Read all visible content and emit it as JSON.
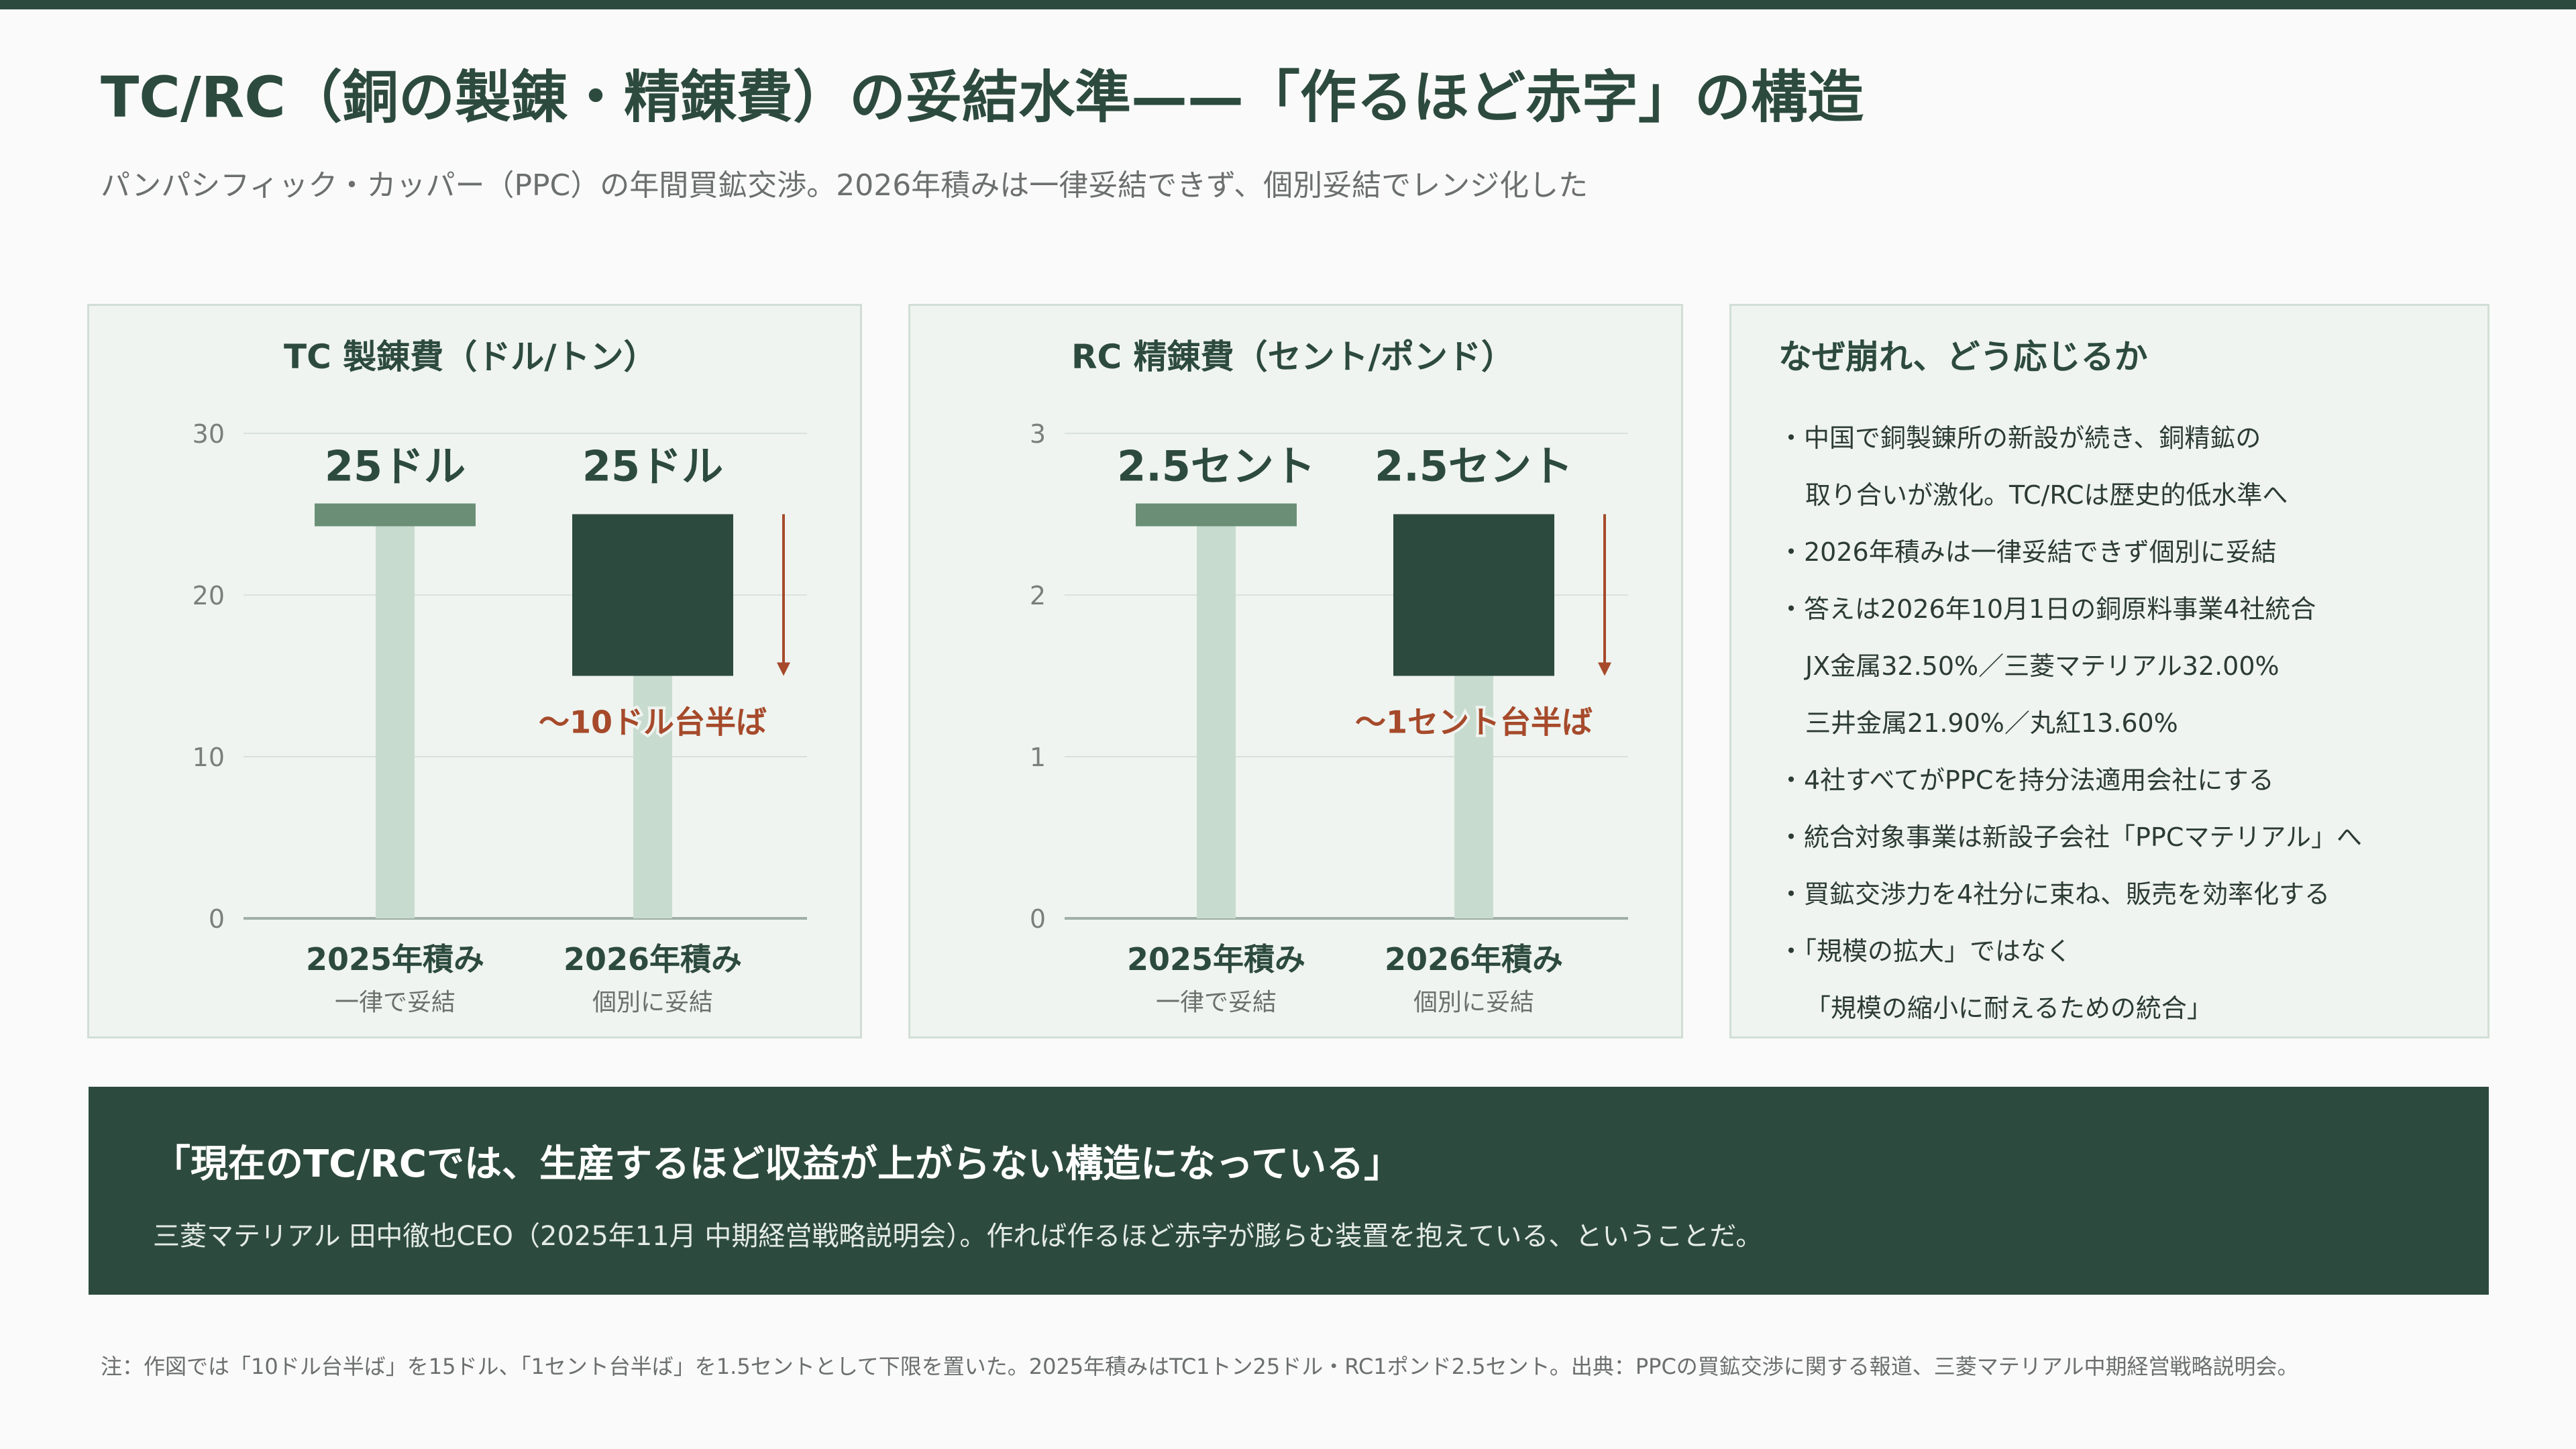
{
  "header": {
    "title": "TC/RC（銅の製錬・精錬費）の妥結水準——「作るほど赤字」の構造",
    "subtitle": "パンパシフィック・カッパー（PPC）の年間買鉱交渉。2026年積みは一律妥結できず、個別妥結でレンジ化した"
  },
  "colors": {
    "dark_green": "#2d4a3e",
    "light_green_bar": "#c8dbcf",
    "cap_green": "#6a8f76",
    "accent_arrow": "#a64a2b"
  },
  "chart_data": [
    {
      "type": "bar",
      "title": "TC 製錬費（ドル/トン）",
      "categories": [
        "2025年積み",
        "2026年積み"
      ],
      "category_sublabels": [
        "一律で妥結",
        "個別に妥結"
      ],
      "yticks": [
        0,
        10,
        20,
        30
      ],
      "ylim": [
        0,
        30
      ],
      "bars": [
        {
          "category": "2025年積み",
          "low": 0,
          "high": 25,
          "label": "25ドル"
        },
        {
          "category": "2026年積み",
          "low": 15,
          "high": 25,
          "label": "25ドル",
          "lower_label": "〜10ドル台半ば"
        }
      ],
      "grid": true
    },
    {
      "type": "bar",
      "title": "RC 精錬費（セント/ポンド）",
      "categories": [
        "2025年積み",
        "2026年積み"
      ],
      "category_sublabels": [
        "一律で妥結",
        "個別に妥結"
      ],
      "yticks": [
        0,
        1,
        2,
        3
      ],
      "ylim": [
        0,
        3
      ],
      "bars": [
        {
          "category": "2025年積み",
          "low": 0,
          "high": 2.5,
          "label": "2.5セント"
        },
        {
          "category": "2026年積み",
          "low": 1.5,
          "high": 2.5,
          "label": "2.5セント",
          "lower_label": "〜1セント台半ば"
        }
      ],
      "grid": true
    }
  ],
  "notes": {
    "title": "なぜ崩れ、どう応じるか",
    "lines": [
      "・中国で銅製錬所の新設が続き、銅精鉱の",
      "取り合いが激化。TC/RCは歴史的低水準へ",
      "・2026年積みは一律妥結できず個別に妥結",
      "・答えは2026年10月1日の銅原料事業4社統合",
      "JX金属32.50%／三菱マテリアル32.00%",
      "三井金属21.90%／丸紅13.60%",
      "・4社すべてがPPCを持分法適用会社にする",
      "・統合対象事業は新設子会社「PPCマテリアル」へ",
      "・買鉱交渉力を4社分に束ね、販売を効率化する",
      "・「規模の拡大」ではなく",
      "「規模の縮小に耐えるための統合」"
    ]
  },
  "quote": {
    "text": "「現在のTC/RCでは、生産するほど収益が上がらない構造になっている」",
    "attribution": "三菱マテリアル 田中徹也CEO（2025年11月 中期経営戦略説明会）。作れば作るほど赤字が膨らむ装置を抱えている、ということだ。"
  },
  "footnote": "注：作図では「10ドル台半ば」を15ドル、「1セント台半ば」を1.5セントとして下限を置いた。2025年積みはTC1トン25ドル・RC1ポンド2.5セント。出典：PPCの買鉱交渉に関する報道、三菱マテリアル中期経営戦略説明会。"
}
